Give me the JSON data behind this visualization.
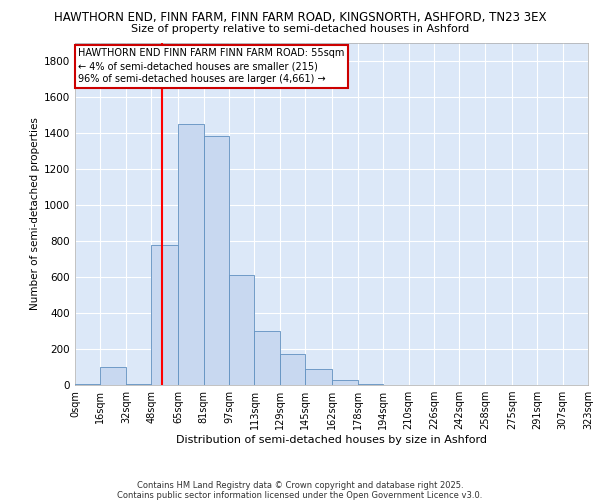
{
  "title_line1": "HAWTHORN END, FINN FARM, FINN FARM ROAD, KINGSNORTH, ASHFORD, TN23 3EX",
  "title_line2": "Size of property relative to semi-detached houses in Ashford",
  "xlabel": "Distribution of semi-detached houses by size in Ashford",
  "ylabel": "Number of semi-detached properties",
  "bin_edges": [
    0,
    16,
    32,
    48,
    65,
    81,
    97,
    113,
    129,
    145,
    162,
    178,
    194,
    210,
    226,
    242,
    258,
    275,
    291,
    307,
    323
  ],
  "bin_labels": [
    "0sqm",
    "16sqm",
    "32sqm",
    "48sqm",
    "65sqm",
    "81sqm",
    "97sqm",
    "113sqm",
    "129sqm",
    "145sqm",
    "162sqm",
    "178sqm",
    "194sqm",
    "210sqm",
    "226sqm",
    "242sqm",
    "258sqm",
    "275sqm",
    "291sqm",
    "307sqm",
    "323sqm"
  ],
  "bar_heights": [
    5,
    100,
    5,
    775,
    1450,
    1380,
    610,
    300,
    170,
    90,
    25,
    5,
    0,
    0,
    0,
    0,
    0,
    0,
    0,
    0
  ],
  "bar_color": "#c8d8f0",
  "bar_edge_color": "#6090c0",
  "vline_x": 55,
  "vline_color": "red",
  "annotation_text": "HAWTHORN END FINN FARM FINN FARM ROAD: 55sqm\n← 4% of semi-detached houses are smaller (215)\n96% of semi-detached houses are larger (4,661) →",
  "ylim": [
    0,
    1900
  ],
  "yticks": [
    0,
    200,
    400,
    600,
    800,
    1000,
    1200,
    1400,
    1600,
    1800
  ],
  "plot_bg_color": "#dce8f8",
  "grid_color": "#ffffff",
  "footer_line1": "Contains HM Land Registry data © Crown copyright and database right 2025.",
  "footer_line2": "Contains public sector information licensed under the Open Government Licence v3.0."
}
